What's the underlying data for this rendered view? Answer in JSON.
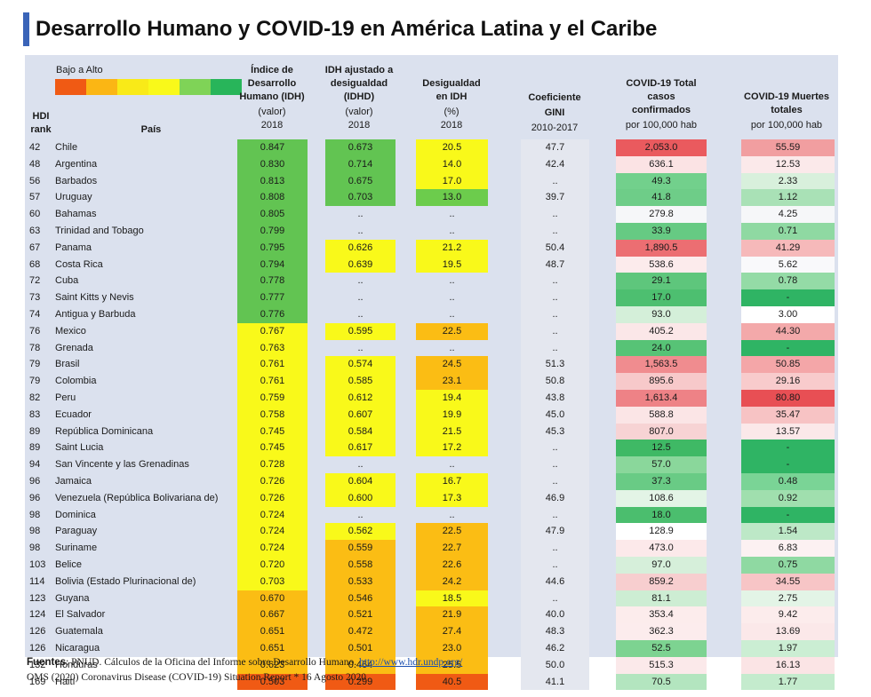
{
  "title": "Desarrollo Humano y COVID-19 en América Latina y el Caribe",
  "legend": {
    "label": "Bajo a Alto",
    "colors": [
      "#f05a14",
      "#fbb614",
      "#f9ea18",
      "#f9f91a",
      "#7fd357",
      "#28b55a"
    ]
  },
  "headers": {
    "hdi_rank": [
      "HDI",
      "rank"
    ],
    "pais": "País",
    "idh": {
      "title": [
        "Índice de",
        "Desarrollo",
        "Humano (IDH)"
      ],
      "unit": "(valor)",
      "year": "2018"
    },
    "idhd": {
      "title": [
        "IDH ajustado a",
        "desigualdad",
        "(IDHD)"
      ],
      "unit": "(valor)",
      "year": "2018"
    },
    "desig": {
      "title": [
        "Desigualdad",
        "en IDH"
      ],
      "unit": "(%)",
      "year": "2018"
    },
    "gini": {
      "title": [
        "Coeficiente",
        "GINI"
      ],
      "year": "2010-2017"
    },
    "casos": {
      "title": [
        "COVID-19 Total",
        "casos",
        "confirmados"
      ],
      "unit": "por 100,000 hab"
    },
    "muertes": {
      "title": [
        "COVID-19 Muertes",
        "totales"
      ],
      "unit": "por 100,000 hab"
    }
  },
  "rows": [
    {
      "rank": "42",
      "pais": "Chile",
      "idh": "0.847",
      "idhd": "0.673",
      "desig": "20.5",
      "gini": "47.7",
      "casos": "2,053.0",
      "muertes": "55.59",
      "c": [
        "#62c452",
        "#62c452",
        "#f9f91a",
        "#e4e7ef",
        "#ea5a5e",
        "#f19ea0"
      ]
    },
    {
      "rank": "48",
      "pais": "Argentina",
      "idh": "0.830",
      "idhd": "0.714",
      "desig": "14.0",
      "gini": "42.4",
      "casos": "636.1",
      "muertes": "12.53",
      "c": [
        "#62c452",
        "#62c452",
        "#f9f91a",
        "#e4e7ef",
        "#fbe3e4",
        "#fbe9ea"
      ]
    },
    {
      "rank": "56",
      "pais": "Barbados",
      "idh": "0.813",
      "idhd": "0.675",
      "desig": "17.0",
      "gini": "..",
      "casos": "49.3",
      "muertes": "2.33",
      "c": [
        "#62c452",
        "#62c452",
        "#f9f91a",
        "#e4e7ef",
        "#72d08c",
        "#d8f0dc"
      ]
    },
    {
      "rank": "57",
      "pais": "Uruguay",
      "idh": "0.808",
      "idhd": "0.703",
      "desig": "13.0",
      "gini": "39.7",
      "casos": "41.8",
      "muertes": "1.12",
      "c": [
        "#62c452",
        "#62c452",
        "#6ccc4c",
        "#e4e7ef",
        "#6ecd88",
        "#a9e1b6"
      ]
    },
    {
      "rank": "60",
      "pais": "Bahamas",
      "idh": "0.805",
      "idhd": "..",
      "desig": "..",
      "gini": "..",
      "casos": "279.8",
      "muertes": "4.25",
      "c": [
        "#62c452",
        "#dbe1ee",
        "#dbe1ee",
        "#e4e7ef",
        "#f6f7f9",
        "#f6f7f9"
      ]
    },
    {
      "rank": "63",
      "pais": "Trinidad and Tobago",
      "idh": "0.799",
      "idhd": "..",
      "desig": "..",
      "gini": "..",
      "casos": "33.9",
      "muertes": "0.71",
      "c": [
        "#62c452",
        "#dbe1ee",
        "#dbe1ee",
        "#e4e7ef",
        "#66ca83",
        "#8fd9a2"
      ]
    },
    {
      "rank": "67",
      "pais": "Panama",
      "idh": "0.795",
      "idhd": "0.626",
      "desig": "21.2",
      "gini": "50.4",
      "casos": "1,890.5",
      "muertes": "41.29",
      "c": [
        "#62c452",
        "#f9f91a",
        "#f9f91a",
        "#e4e7ef",
        "#ec6e72",
        "#f6b9ba"
      ]
    },
    {
      "rank": "68",
      "pais": "Costa Rica",
      "idh": "0.794",
      "idhd": "0.639",
      "desig": "19.5",
      "gini": "48.7",
      "casos": "538.6",
      "muertes": "5.62",
      "c": [
        "#62c452",
        "#f9f91a",
        "#f9f91a",
        "#e4e7ef",
        "#fcebec",
        "#f9f9fb"
      ]
    },
    {
      "rank": "72",
      "pais": "Cuba",
      "idh": "0.778",
      "idhd": "..",
      "desig": "..",
      "gini": "..",
      "casos": "29.1",
      "muertes": "0.78",
      "c": [
        "#62c452",
        "#dbe1ee",
        "#dbe1ee",
        "#e4e7ef",
        "#5ec67c",
        "#94dba6"
      ]
    },
    {
      "rank": "73",
      "pais": "Saint Kitts y Nevis",
      "idh": "0.777",
      "idhd": "..",
      "desig": "..",
      "gini": "..",
      "casos": "17.0",
      "muertes": "-",
      "c": [
        "#62c452",
        "#dbe1ee",
        "#dbe1ee",
        "#e4e7ef",
        "#4dbf70",
        "#2fb464"
      ]
    },
    {
      "rank": "74",
      "pais": "Antigua y Barbuda",
      "idh": "0.776",
      "idhd": "..",
      "desig": "..",
      "gini": "..",
      "casos": "93.0",
      "muertes": "3.00",
      "c": [
        "#62c452",
        "#dbe1ee",
        "#dbe1ee",
        "#e4e7ef",
        "#d4efd9",
        "#ffffff"
      ]
    },
    {
      "rank": "76",
      "pais": "Mexico",
      "idh": "0.767",
      "idhd": "0.595",
      "desig": "22.5",
      "gini": "..",
      "casos": "405.2",
      "muertes": "44.30",
      "c": [
        "#f9f91a",
        "#f9f91a",
        "#fbbd14",
        "#e4e7ef",
        "#fbe7e8",
        "#f3a9aa"
      ]
    },
    {
      "rank": "78",
      "pais": "Grenada",
      "idh": "0.763",
      "idhd": "..",
      "desig": "..",
      "gini": "..",
      "casos": "24.0",
      "muertes": "-",
      "c": [
        "#f9f91a",
        "#dbe1ee",
        "#dbe1ee",
        "#e4e7ef",
        "#57c376",
        "#2fb464"
      ]
    },
    {
      "rank": "79",
      "pais": "Brasil",
      "idh": "0.761",
      "idhd": "0.574",
      "desig": "24.5",
      "gini": "51.3",
      "casos": "1,563.5",
      "muertes": "50.85",
      "c": [
        "#f9f91a",
        "#f9f91a",
        "#fbbd14",
        "#e4e7ef",
        "#f08c8f",
        "#f4a6a8"
      ]
    },
    {
      "rank": "79",
      "pais": "Colombia",
      "idh": "0.761",
      "idhd": "0.585",
      "desig": "23.1",
      "gini": "50.8",
      "casos": "895.6",
      "muertes": "29.16",
      "c": [
        "#f9f91a",
        "#f9f91a",
        "#fbbd14",
        "#e4e7ef",
        "#f7c9ca",
        "#f8cbcc"
      ]
    },
    {
      "rank": "82",
      "pais": "Peru",
      "idh": "0.759",
      "idhd": "0.612",
      "desig": "19.4",
      "gini": "43.8",
      "casos": "1,613.4",
      "muertes": "80.80",
      "c": [
        "#f9f91a",
        "#f9f91a",
        "#f9f91a",
        "#e4e7ef",
        "#ee8286",
        "#e84f54"
      ]
    },
    {
      "rank": "83",
      "pais": "Ecuador",
      "idh": "0.758",
      "idhd": "0.607",
      "desig": "19.9",
      "gini": "45.0",
      "casos": "588.8",
      "muertes": "35.47",
      "c": [
        "#f9f91a",
        "#f9f91a",
        "#f9f91a",
        "#e4e7ef",
        "#fbe5e6",
        "#f7c3c4"
      ]
    },
    {
      "rank": "89",
      "pais": "República Dominicana",
      "idh": "0.745",
      "idhd": "0.584",
      "desig": "21.5",
      "gini": "45.3",
      "casos": "807.0",
      "muertes": "13.57",
      "c": [
        "#f9f91a",
        "#f9f91a",
        "#f9f91a",
        "#e4e7ef",
        "#f7d3d4",
        "#fbe8e9"
      ]
    },
    {
      "rank": "89",
      "pais": "Saint Lucia",
      "idh": "0.745",
      "idhd": "0.617",
      "desig": "17.2",
      "gini": "..",
      "casos": "12.5",
      "muertes": "-",
      "c": [
        "#f9f91a",
        "#f9f91a",
        "#f9f91a",
        "#e4e7ef",
        "#3fb965",
        "#2fb464"
      ]
    },
    {
      "rank": "94",
      "pais": "San Vincente y las Grenadinas",
      "idh": "0.728",
      "idhd": "..",
      "desig": "..",
      "gini": "..",
      "casos": "57.0",
      "muertes": "-",
      "c": [
        "#f9f91a",
        "#dbe1ee",
        "#dbe1ee",
        "#e4e7ef",
        "#8ad79b",
        "#2fb464"
      ]
    },
    {
      "rank": "96",
      "pais": "Jamaica",
      "idh": "0.726",
      "idhd": "0.604",
      "desig": "16.7",
      "gini": "..",
      "casos": "37.3",
      "muertes": "0.48",
      "c": [
        "#f9f91a",
        "#f9f91a",
        "#f9f91a",
        "#e4e7ef",
        "#69cb85",
        "#7ad496"
      ]
    },
    {
      "rank": "96",
      "pais": "Venezuela (República Bolivariana de)",
      "idh": "0.726",
      "idhd": "0.600",
      "desig": "17.3",
      "gini": "46.9",
      "casos": "108.6",
      "muertes": "0.92",
      "c": [
        "#f9f91a",
        "#f9f91a",
        "#f9f91a",
        "#e4e7ef",
        "#e3f4e6",
        "#a0dfae"
      ]
    },
    {
      "rank": "98",
      "pais": "Dominica",
      "idh": "0.724",
      "idhd": "..",
      "desig": "..",
      "gini": "..",
      "casos": "18.0",
      "muertes": "-",
      "c": [
        "#f9f91a",
        "#dbe1ee",
        "#dbe1ee",
        "#e4e7ef",
        "#4bbe6e",
        "#2fb464"
      ]
    },
    {
      "rank": "98",
      "pais": "Paraguay",
      "idh": "0.724",
      "idhd": "0.562",
      "desig": "22.5",
      "gini": "47.9",
      "casos": "128.9",
      "muertes": "1.54",
      "c": [
        "#f9f91a",
        "#f9f91a",
        "#fbbd14",
        "#e4e7ef",
        "#ffffff",
        "#bde8c7"
      ]
    },
    {
      "rank": "98",
      "pais": "Suriname",
      "idh": "0.724",
      "idhd": "0.559",
      "desig": "22.7",
      "gini": "..",
      "casos": "473.0",
      "muertes": "6.83",
      "c": [
        "#f9f91a",
        "#fbbd14",
        "#fbbd14",
        "#e4e7ef",
        "#fce9ea",
        "#fcf1f2"
      ]
    },
    {
      "rank": "103",
      "pais": "Belice",
      "idh": "0.720",
      "idhd": "0.558",
      "desig": "22.6",
      "gini": "..",
      "casos": "97.0",
      "muertes": "0.75",
      "c": [
        "#f9f91a",
        "#fbbd14",
        "#fbbd14",
        "#e4e7ef",
        "#d6efda",
        "#8fd9a2"
      ]
    },
    {
      "rank": "114",
      "pais": "Bolivia (Estado Plurinacional de)",
      "idh": "0.703",
      "idhd": "0.533",
      "desig": "24.2",
      "gini": "44.6",
      "casos": "859.2",
      "muertes": "34.55",
      "c": [
        "#f9f91a",
        "#fbbd14",
        "#fbbd14",
        "#e4e7ef",
        "#f7cecf",
        "#f7c5c6"
      ]
    },
    {
      "rank": "123",
      "pais": "Guyana",
      "idh": "0.670",
      "idhd": "0.546",
      "desig": "18.5",
      "gini": "..",
      "casos": "81.1",
      "muertes": "2.75",
      "c": [
        "#fbbd14",
        "#fbbd14",
        "#f9f91a",
        "#e4e7ef",
        "#cdedd3",
        "#e3f4e6"
      ]
    },
    {
      "rank": "124",
      "pais": "El Salvador",
      "idh": "0.667",
      "idhd": "0.521",
      "desig": "21.9",
      "gini": "40.0",
      "casos": "353.4",
      "muertes": "9.42",
      "c": [
        "#fbbd14",
        "#fbbd14",
        "#fbbd14",
        "#e4e7ef",
        "#fcecec",
        "#fcecec"
      ]
    },
    {
      "rank": "126",
      "pais": "Guatemala",
      "idh": "0.651",
      "idhd": "0.472",
      "desig": "27.4",
      "gini": "48.3",
      "casos": "362.3",
      "muertes": "13.69",
      "c": [
        "#fbbd14",
        "#fbbd14",
        "#fbbd14",
        "#e4e7ef",
        "#fceced",
        "#fbe8e9"
      ]
    },
    {
      "rank": "126",
      "pais": "Nicaragua",
      "idh": "0.651",
      "idhd": "0.501",
      "desig": "23.0",
      "gini": "46.2",
      "casos": "52.5",
      "muertes": "1.97",
      "c": [
        "#fbbd14",
        "#fbbd14",
        "#fbbd14",
        "#e4e7ef",
        "#7dd391",
        "#cbeed3"
      ]
    },
    {
      "rank": "132",
      "pais": "Honduras",
      "idh": "0.623",
      "idhd": "0.464",
      "desig": "25.5",
      "gini": "50.0",
      "casos": "515.3",
      "muertes": "16.13",
      "c": [
        "#fbbd14",
        "#fbbd14",
        "#fbbd14",
        "#e4e7ef",
        "#fbe9ea",
        "#fbe4e5"
      ]
    },
    {
      "rank": "169",
      "pais": "Haití",
      "idh": "0.503",
      "idhd": "0.299",
      "desig": "40.5",
      "gini": "41.1",
      "casos": "70.5",
      "muertes": "1.77",
      "c": [
        "#f05a14",
        "#f05a14",
        "#f05a14",
        "#e4e7ef",
        "#b3e5bf",
        "#c4ebcd"
      ]
    }
  ],
  "footer": {
    "line1_bold": "Fuentes",
    "line1_text": ": PNUD. Cálculos de la Oficina del Informe sobre Desarrollo Humano. ",
    "line1_link": "http://www.hdr.undp.org/",
    "line2": "OMS (2020) Coronavirus Disease (COVID-19) Situation Report  * 16 Agosto 2020"
  }
}
